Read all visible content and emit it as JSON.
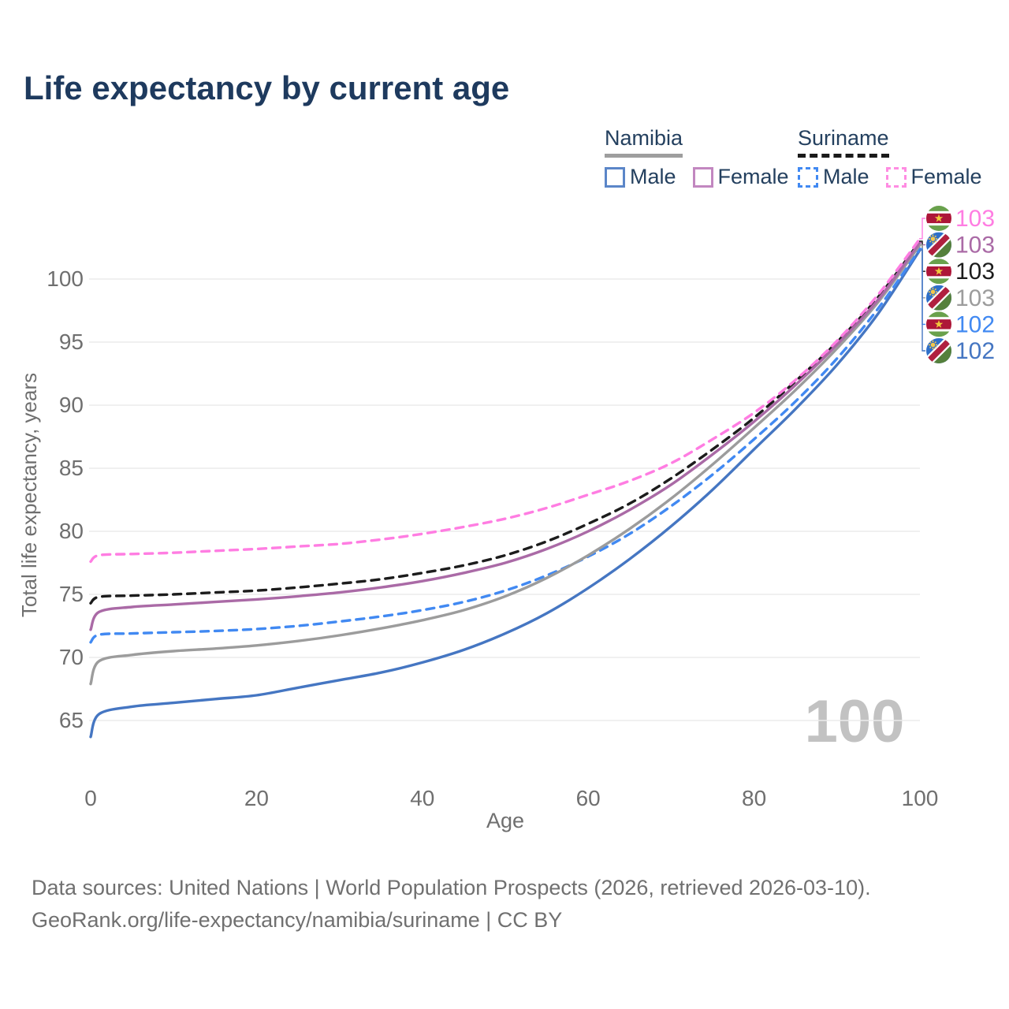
{
  "header": {
    "title": "Life expectancy by current age"
  },
  "legend": {
    "groups": [
      {
        "name": "Namibia",
        "line_style": "solid",
        "underline_color": "#9e9e9e",
        "items": [
          {
            "label": "Male",
            "color": "#4576c2",
            "dashed": false
          },
          {
            "label": "Female",
            "color": "#aa6aa6",
            "dashed": false
          }
        ]
      },
      {
        "name": "Suriname",
        "line_style": "dashed",
        "underline_color": "#1a1a1a",
        "items": [
          {
            "label": "Male",
            "color": "#4189f2",
            "dashed": true
          },
          {
            "label": "Female",
            "color": "#ff7de2",
            "dashed": true
          }
        ]
      }
    ]
  },
  "chart_data": {
    "type": "line",
    "title": "Life expectancy by current age",
    "xlabel": "Age",
    "ylabel": "Total life expectancy, years",
    "x_ticks": [
      0,
      20,
      40,
      60,
      80,
      100
    ],
    "y_ticks": [
      65,
      70,
      75,
      80,
      85,
      90,
      95,
      100
    ],
    "xlim": [
      0,
      100
    ],
    "ylim": [
      63,
      104
    ],
    "grid": "horizontal-only",
    "gridline_color": "#ebebeb",
    "tick_label_color": "#6f6f6f",
    "watermark": "100",
    "watermark_color": "#c2c2c2",
    "ages": [
      0,
      1,
      5,
      10,
      15,
      20,
      25,
      30,
      35,
      40,
      45,
      50,
      55,
      60,
      65,
      70,
      75,
      80,
      85,
      90,
      95,
      100
    ],
    "series": [
      {
        "name": "Suriname Female",
        "country": "Suriname",
        "sex": "Female",
        "flag": "suriname-flag-icon",
        "color": "#ff7de2",
        "dashed": true,
        "end_label": "103",
        "values": [
          77.6,
          78.1,
          78.2,
          78.3,
          78.45,
          78.6,
          78.8,
          79.0,
          79.35,
          79.8,
          80.35,
          81.0,
          81.85,
          82.9,
          84.0,
          85.4,
          87.3,
          89.4,
          92.0,
          95.1,
          98.8,
          103.2
        ]
      },
      {
        "name": "Namibia Female",
        "country": "Namibia",
        "sex": "Female",
        "flag": "namibia-flag-icon",
        "color": "#aa6aa6",
        "dashed": false,
        "end_label": "103",
        "values": [
          72.2,
          73.6,
          74.0,
          74.2,
          74.4,
          74.6,
          74.85,
          75.15,
          75.55,
          76.05,
          76.7,
          77.5,
          78.6,
          80.0,
          81.7,
          83.7,
          86.1,
          88.7,
          91.6,
          94.8,
          98.4,
          102.9
        ]
      },
      {
        "name": "Suriname",
        "country": "Suriname",
        "sex": "Both",
        "flag": "suriname-flag-icon",
        "color": "#1c1c1c",
        "dashed": true,
        "end_label": "103",
        "values": [
          74.3,
          74.8,
          74.9,
          75.0,
          75.15,
          75.3,
          75.55,
          75.85,
          76.2,
          76.7,
          77.3,
          78.1,
          79.2,
          80.6,
          82.2,
          84.2,
          86.5,
          89.0,
          91.9,
          95.0,
          98.6,
          103.0
        ]
      },
      {
        "name": "Namibia",
        "country": "Namibia",
        "sex": "Both",
        "flag": "namibia-flag-icon",
        "color": "#9c9c9c",
        "dashed": false,
        "end_label": "103",
        "values": [
          67.9,
          69.7,
          70.2,
          70.5,
          70.7,
          70.95,
          71.3,
          71.75,
          72.3,
          72.95,
          73.75,
          74.85,
          76.3,
          78.1,
          80.2,
          82.6,
          85.3,
          88.2,
          91.2,
          94.5,
          98.2,
          102.7
        ]
      },
      {
        "name": "Suriname Male",
        "country": "Suriname",
        "sex": "Male",
        "flag": "suriname-flag-icon",
        "color": "#4189f2",
        "dashed": true,
        "end_label": "102",
        "values": [
          71.2,
          71.8,
          71.9,
          72.0,
          72.1,
          72.25,
          72.5,
          72.85,
          73.25,
          73.75,
          74.4,
          75.3,
          76.5,
          78.0,
          79.8,
          82.0,
          84.5,
          87.3,
          90.3,
          93.7,
          97.7,
          102.4
        ]
      },
      {
        "name": "Namibia Male",
        "country": "Namibia",
        "sex": "Male",
        "flag": "namibia-flag-icon",
        "color": "#4576c2",
        "dashed": false,
        "end_label": "102",
        "values": [
          63.7,
          65.5,
          66.1,
          66.4,
          66.7,
          67.0,
          67.6,
          68.2,
          68.8,
          69.6,
          70.6,
          71.9,
          73.5,
          75.5,
          77.8,
          80.4,
          83.3,
          86.5,
          89.7,
          93.2,
          97.3,
          102.3
        ]
      }
    ]
  },
  "footer": {
    "line1": "Data sources: United Nations | World Population Prospects (2026, retrieved 2026-03-10).",
    "line2": "GeoRank.org/life-expectancy/namibia/suriname | CC BY"
  }
}
